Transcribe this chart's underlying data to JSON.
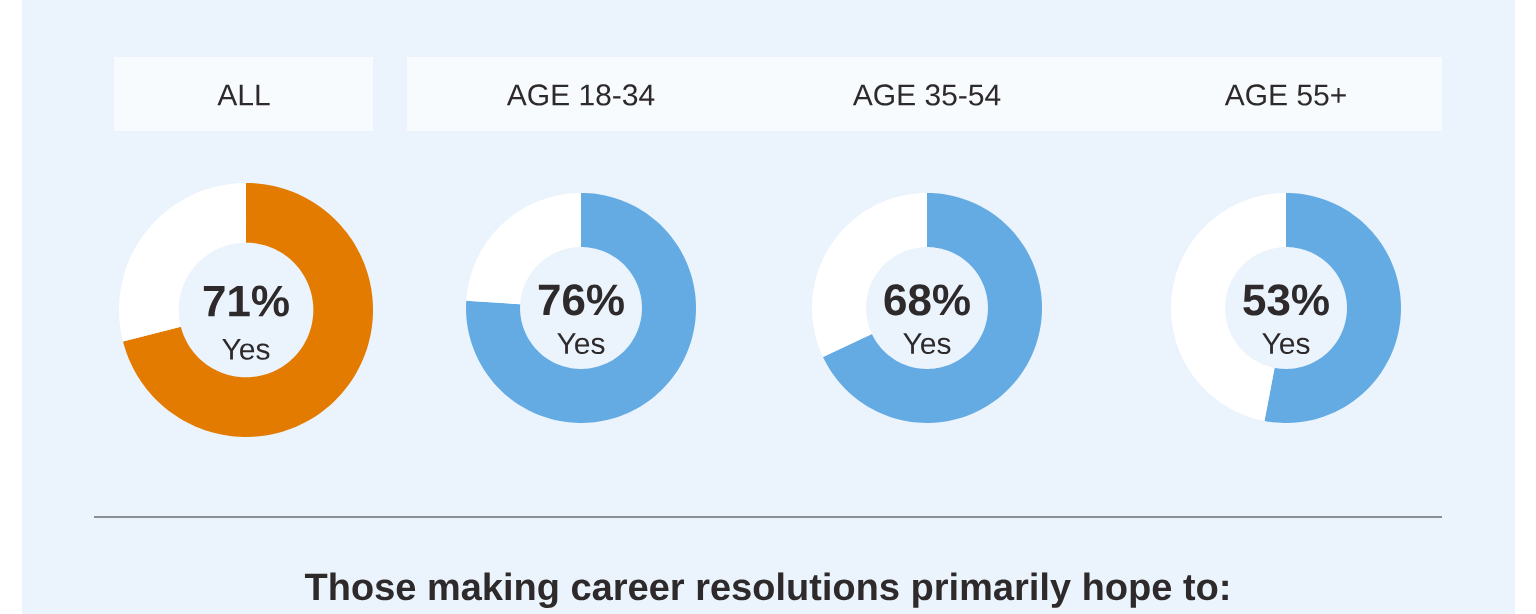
{
  "chart_data": [
    {
      "type": "donut",
      "title": "ALL",
      "categories": [
        "Yes",
        null
      ],
      "values": [
        71,
        29
      ],
      "colors": [
        "#e37b00",
        "#ffffff"
      ],
      "value_labels": [
        "71%",
        null
      ]
    },
    {
      "type": "donut",
      "title": "AGE 18-34",
      "categories": [
        "Yes",
        null
      ],
      "values": [
        76,
        24
      ],
      "colors": [
        "#65abe3",
        "#ffffff"
      ],
      "value_labels": [
        "76%",
        null
      ]
    },
    {
      "type": "donut",
      "title": "AGE 35-54",
      "categories": [
        "Yes",
        null
      ],
      "values": [
        68,
        32
      ],
      "colors": [
        "#65abe3",
        "#ffffff"
      ],
      "value_labels": [
        "68%",
        null
      ]
    },
    {
      "type": "donut",
      "title": "AGE 55+",
      "categories": [
        "Yes",
        null
      ],
      "values": [
        53,
        47
      ],
      "colors": [
        "#65abe3",
        "#ffffff"
      ],
      "value_labels": [
        "53%",
        null
      ]
    },
    {
      "type": "other",
      "title": "Those making career resolutions primarily hope to:"
    }
  ]
}
